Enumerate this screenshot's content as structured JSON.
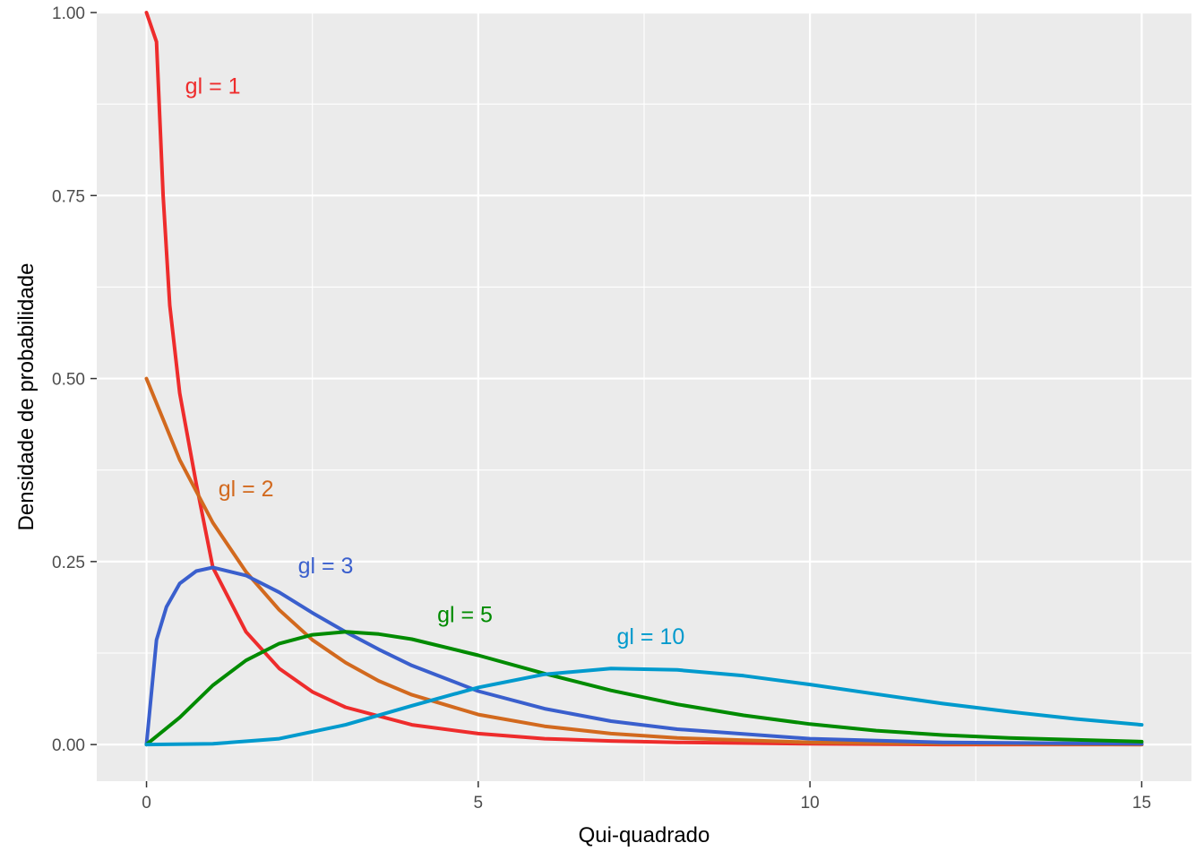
{
  "chart_data": {
    "type": "line",
    "xlabel": "Qui-quadrado",
    "ylabel": "Densidade de probabilidade",
    "xlim": [
      -0.75,
      15.75
    ],
    "ylim": [
      -0.05,
      1.0
    ],
    "x_ticks": [
      0,
      5,
      10,
      15
    ],
    "x_tick_labels": [
      "0",
      "5",
      "10",
      "15"
    ],
    "y_ticks": [
      0,
      0.25,
      0.5,
      0.75,
      1.0
    ],
    "y_tick_labels": [
      "0.00",
      "0.25",
      "0.50",
      "0.75",
      "1.00"
    ],
    "grid": true,
    "legend": "none",
    "panel_background": "#ebebeb",
    "series": [
      {
        "df": 1,
        "label": "gl = 1",
        "color": "#ee2c2c",
        "label_at": [
          1.0,
          0.9
        ],
        "points": [
          [
            0.0,
            1.0
          ],
          [
            0.15,
            0.96
          ],
          [
            0.25,
            0.75
          ],
          [
            0.35,
            0.6
          ],
          [
            0.5,
            0.48
          ],
          [
            0.75,
            0.356
          ],
          [
            1.0,
            0.242
          ],
          [
            1.5,
            0.154
          ],
          [
            2.0,
            0.104
          ],
          [
            2.5,
            0.072
          ],
          [
            3.0,
            0.051
          ],
          [
            4.0,
            0.027
          ],
          [
            5.0,
            0.015
          ],
          [
            6.0,
            0.008
          ],
          [
            7.0,
            0.005
          ],
          [
            8.0,
            0.003
          ],
          [
            10.0,
            0.001
          ],
          [
            12.0,
            0.0
          ],
          [
            15.0,
            0.0
          ]
        ]
      },
      {
        "df": 2,
        "label": "gl = 2",
        "color": "#d2691e",
        "label_at": [
          1.5,
          0.35
        ],
        "points": [
          [
            0.0,
            0.5
          ],
          [
            0.5,
            0.389
          ],
          [
            1.0,
            0.303
          ],
          [
            1.5,
            0.236
          ],
          [
            2.0,
            0.184
          ],
          [
            2.5,
            0.143
          ],
          [
            3.0,
            0.112
          ],
          [
            3.5,
            0.087
          ],
          [
            4.0,
            0.068
          ],
          [
            5.0,
            0.041
          ],
          [
            6.0,
            0.025
          ],
          [
            7.0,
            0.015
          ],
          [
            8.0,
            0.009
          ],
          [
            9.0,
            0.006
          ],
          [
            10.0,
            0.003
          ],
          [
            12.0,
            0.001
          ],
          [
            15.0,
            0.0
          ]
        ]
      },
      {
        "df": 3,
        "label": "gl = 3",
        "color": "#3a5fcd",
        "label_at": [
          2.7,
          0.245
        ],
        "points": [
          [
            0.0,
            0.0
          ],
          [
            0.15,
            0.143
          ],
          [
            0.3,
            0.188
          ],
          [
            0.5,
            0.22
          ],
          [
            0.75,
            0.237
          ],
          [
            1.0,
            0.242
          ],
          [
            1.5,
            0.231
          ],
          [
            2.0,
            0.208
          ],
          [
            2.5,
            0.18
          ],
          [
            3.0,
            0.154
          ],
          [
            3.5,
            0.13
          ],
          [
            4.0,
            0.108
          ],
          [
            5.0,
            0.073
          ],
          [
            6.0,
            0.049
          ],
          [
            7.0,
            0.032
          ],
          [
            8.0,
            0.021
          ],
          [
            10.0,
            0.008
          ],
          [
            12.0,
            0.003
          ],
          [
            15.0,
            0.001
          ]
        ]
      },
      {
        "df": 5,
        "label": "gl = 5",
        "color": "#008b00",
        "label_at": [
          4.8,
          0.178
        ],
        "points": [
          [
            0.0,
            0.0
          ],
          [
            0.5,
            0.037
          ],
          [
            1.0,
            0.081
          ],
          [
            1.5,
            0.115
          ],
          [
            2.0,
            0.138
          ],
          [
            2.5,
            0.15
          ],
          [
            3.0,
            0.154
          ],
          [
            3.5,
            0.151
          ],
          [
            4.0,
            0.144
          ],
          [
            5.0,
            0.122
          ],
          [
            6.0,
            0.097
          ],
          [
            7.0,
            0.074
          ],
          [
            8.0,
            0.055
          ],
          [
            9.0,
            0.04
          ],
          [
            10.0,
            0.028
          ],
          [
            11.0,
            0.019
          ],
          [
            12.0,
            0.013
          ],
          [
            13.0,
            0.009
          ],
          [
            15.0,
            0.004
          ]
        ]
      },
      {
        "df": 10,
        "label": "gl = 10",
        "color": "#009acd",
        "label_at": [
          7.6,
          0.148
        ],
        "points": [
          [
            0.0,
            0.0
          ],
          [
            1.0,
            0.001
          ],
          [
            2.0,
            0.008
          ],
          [
            3.0,
            0.027
          ],
          [
            4.0,
            0.053
          ],
          [
            5.0,
            0.078
          ],
          [
            6.0,
            0.096
          ],
          [
            7.0,
            0.104
          ],
          [
            8.0,
            0.102
          ],
          [
            9.0,
            0.094
          ],
          [
            10.0,
            0.082
          ],
          [
            11.0,
            0.069
          ],
          [
            12.0,
            0.056
          ],
          [
            13.0,
            0.045
          ],
          [
            14.0,
            0.035
          ],
          [
            15.0,
            0.027
          ]
        ]
      }
    ]
  }
}
